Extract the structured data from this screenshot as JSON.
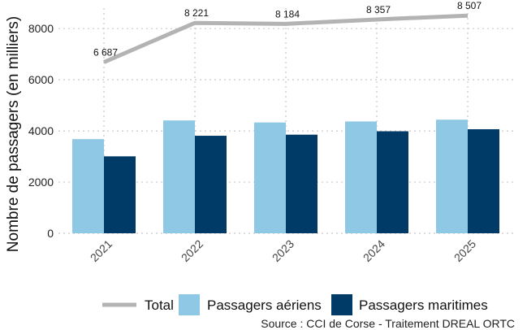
{
  "chart_data": {
    "type": "bar",
    "categories": [
      "2021",
      "2022",
      "2023",
      "2024",
      "2025"
    ],
    "series": [
      {
        "name": "Passagers aériens",
        "type": "bar",
        "color": "#8ec8e5",
        "values": [
          3680,
          4410,
          4330,
          4370,
          4440
        ]
      },
      {
        "name": "Passagers maritimes",
        "type": "bar",
        "color": "#003a66",
        "values": [
          3007,
          3811,
          3854,
          3987,
          4067
        ]
      },
      {
        "name": "Total",
        "type": "line",
        "color": "#b3b3b3",
        "values": [
          6687,
          8221,
          8184,
          8357,
          8507
        ],
        "labels": [
          "6 687",
          "8 221",
          "8 184",
          "8 357",
          "8 507"
        ]
      }
    ],
    "ylabel": "Nombre de passagers (en milliers)",
    "xlabel": "",
    "ylim": [
      0,
      8800
    ],
    "yticks": [
      0,
      2000,
      4000,
      6000,
      8000
    ],
    "grid": true,
    "legend_position": "bottom",
    "legend": [
      "Total",
      "Passagers aériens",
      "Passagers maritimes"
    ],
    "source": "Source : CCI de Corse - Traitement DREAL ORTC"
  }
}
